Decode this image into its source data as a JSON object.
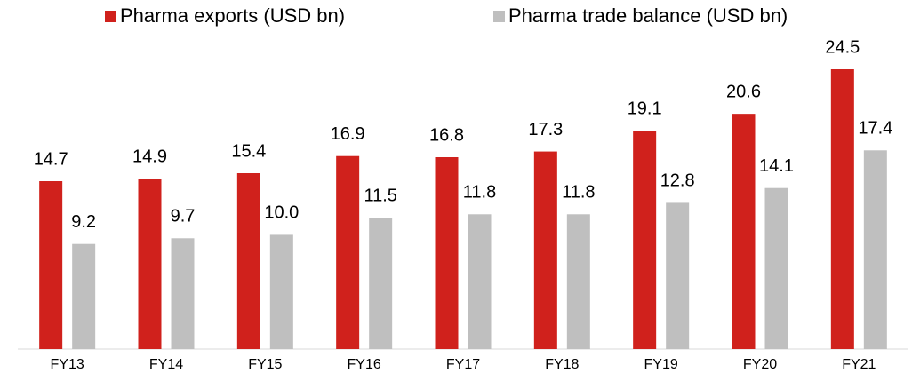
{
  "chart_data": {
    "type": "bar",
    "categories": [
      "FY13",
      "FY14",
      "FY15",
      "FY16",
      "FY17",
      "FY18",
      "FY19",
      "FY20",
      "FY21"
    ],
    "series": [
      {
        "name": "Pharma exports (USD bn)",
        "color": "#d0211c",
        "values": [
          14.7,
          14.9,
          15.4,
          16.9,
          16.8,
          17.3,
          19.1,
          20.6,
          24.5
        ]
      },
      {
        "name": "Pharma trade balance (USD bn)",
        "color": "#bfbfbf",
        "values": [
          9.2,
          9.7,
          10,
          11.5,
          11.8,
          11.8,
          12.8,
          14.1,
          17.4
        ],
        "value_labels": [
          "9.2",
          "9.7",
          "10.0",
          "11.5",
          "11.8",
          "11.8",
          "12.8",
          "14.1",
          "17.4"
        ]
      }
    ],
    "legend": "top",
    "grid": false
  }
}
